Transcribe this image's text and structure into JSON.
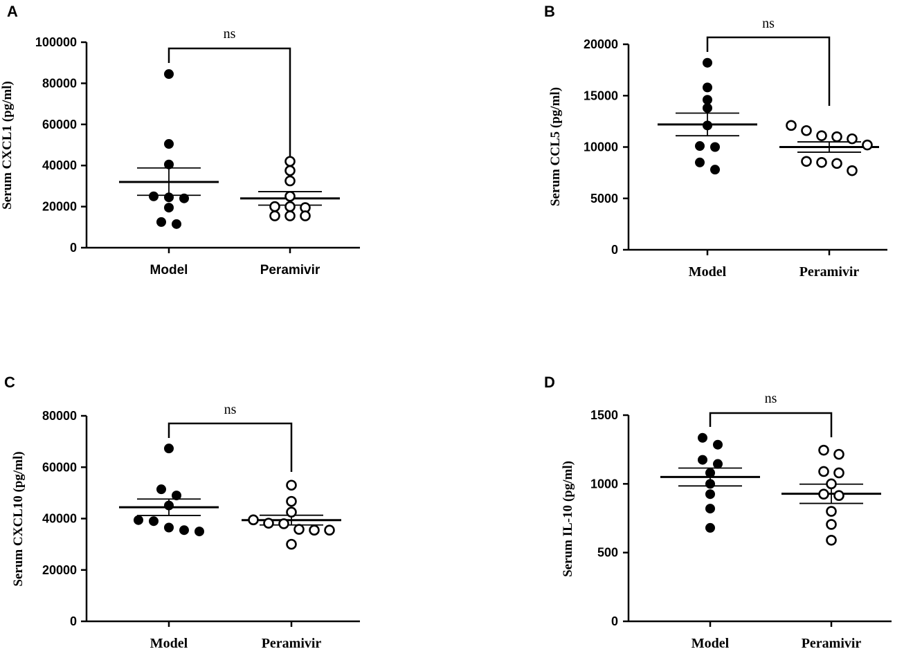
{
  "chart_data": [
    {
      "panel": "A",
      "type": "scatter",
      "ylabel": "Serum CXCL1 (pg/ml)",
      "ylim": [
        0,
        100000
      ],
      "yticks": [
        0,
        20000,
        40000,
        60000,
        80000,
        100000
      ],
      "categories": [
        "Model",
        "Peramivir"
      ],
      "significance": "ns",
      "series": [
        {
          "name": "Model",
          "marker": "filled",
          "values": [
            84500,
            50500,
            40500,
            25000,
            24000,
            24500,
            19500,
            12500,
            11500
          ],
          "mean": 32000,
          "sem_low": 25500,
          "sem_high": 38800
        },
        {
          "name": "Peramivir",
          "marker": "open",
          "values": [
            42000,
            37500,
            32500,
            25000,
            20000,
            20000,
            19500,
            15500,
            15500,
            15500
          ],
          "mean": 24000,
          "sem_low": 20700,
          "sem_high": 27300
        }
      ]
    },
    {
      "panel": "B",
      "type": "scatter",
      "ylabel": "Serum CCL5 (pg/ml)",
      "ylim": [
        0,
        20000
      ],
      "yticks": [
        0,
        5000,
        10000,
        15000,
        20000
      ],
      "categories": [
        "Model",
        "Peramivir"
      ],
      "significance": "ns",
      "series": [
        {
          "name": "Model",
          "marker": "filled",
          "values": [
            18200,
            15800,
            14600,
            13800,
            12100,
            10000,
            10100,
            8500,
            7800
          ],
          "mean": 12200,
          "sem_low": 11100,
          "sem_high": 13300
        },
        {
          "name": "Peramivir",
          "marker": "open",
          "values": [
            12100,
            11600,
            11100,
            11000,
            10800,
            10200,
            8600,
            8500,
            8400,
            7700
          ],
          "mean": 10000,
          "sem_low": 9500,
          "sem_high": 10500
        }
      ]
    },
    {
      "panel": "C",
      "type": "scatter",
      "ylabel": "Serum CXCL10 (pg/ml)",
      "ylim": [
        0,
        80000
      ],
      "yticks": [
        0,
        20000,
        40000,
        60000,
        80000
      ],
      "categories": [
        "Model",
        "Peramivir"
      ],
      "significance": "ns",
      "series": [
        {
          "name": "Model",
          "marker": "filled",
          "values": [
            67300,
            51400,
            49000,
            45100,
            39400,
            39000,
            36500,
            35500,
            35000
          ],
          "mean": 44400,
          "sem_low": 41200,
          "sem_high": 47600
        },
        {
          "name": "Peramivir",
          "marker": "open",
          "values": [
            53000,
            46700,
            42500,
            39500,
            38200,
            38000,
            35800,
            35500,
            35500,
            30000
          ],
          "mean": 39400,
          "sem_low": 37500,
          "sem_high": 41300
        }
      ]
    },
    {
      "panel": "D",
      "type": "scatter",
      "ylabel": "Serum IL-10 (pg/ml)",
      "ylim": [
        0,
        1500
      ],
      "yticks": [
        0,
        500,
        1000,
        1500
      ],
      "categories": [
        "Model",
        "Peramivir"
      ],
      "significance": "ns",
      "series": [
        {
          "name": "Model",
          "marker": "filled",
          "values": [
            1335,
            1285,
            1175,
            1145,
            1080,
            1000,
            925,
            820,
            680
          ],
          "mean": 1050,
          "sem_low": 985,
          "sem_high": 1115
        },
        {
          "name": "Peramivir",
          "marker": "open",
          "values": [
            1245,
            1215,
            1090,
            1080,
            1000,
            925,
            915,
            800,
            705,
            590
          ],
          "mean": 928,
          "sem_low": 858,
          "sem_high": 998
        }
      ]
    }
  ]
}
